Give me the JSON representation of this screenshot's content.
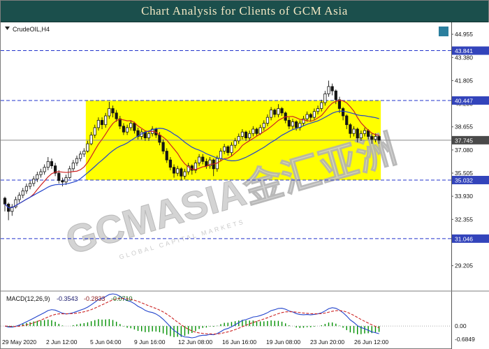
{
  "header": {
    "title": "Chart Analysis for Clients of GCM Asia"
  },
  "chart": {
    "symbol_label": "CrudeOIL,H4",
    "watermark": {
      "text": "GCMASIA金汇亚洲",
      "sub": "GLOBAL CAPITAL MARKETS"
    },
    "axis": {
      "badges": [
        {
          "text": "43.841",
          "price": 43.841,
          "kind": "level"
        },
        {
          "text": "40.447",
          "price": 40.447,
          "kind": "level"
        },
        {
          "text": "37.745",
          "price": 37.745,
          "kind": "current"
        },
        {
          "text": "35.032",
          "price": 35.032,
          "kind": "level"
        },
        {
          "text": "31.046",
          "price": 31.046,
          "kind": "level"
        }
      ]
    },
    "colors": {
      "level_line": "#2233cc",
      "badge_level": "#3344bb",
      "badge_current": "#4a4a4a",
      "current_line": "#8a8a8a",
      "highlight": "#ffff00",
      "header_bg": "#1b4f4c",
      "header_fg": "#f2e7c3"
    }
  },
  "chart_data": {
    "type": "candlestick",
    "symbol": "CrudeOIL",
    "timeframe": "H4",
    "title": "Chart Analysis for Clients of GCM Asia",
    "x_labels": [
      "29 May 2020",
      "2 Jun 12:00",
      "5 Jun 04:00",
      "9 Jun 16:00",
      "12 Jun 08:00",
      "16 Jun 16:00",
      "19 Jun 08:00",
      "23 Jun 20:00",
      "26 Jun 12:00"
    ],
    "y_ticks": [
      "44.955",
      "43.380",
      "41.805",
      "40.230",
      "38.655",
      "37.080",
      "35.505",
      "33.930",
      "32.355",
      "29.205"
    ],
    "y_range": [
      27.5,
      45.8
    ],
    "levels": {
      "resistance": [
        43.841,
        40.447
      ],
      "support": [
        35.032,
        31.046
      ],
      "current": 37.745
    },
    "highlight_zone": {
      "start_bar": 23,
      "end_bar": 105,
      "top_price": 40.447,
      "bottom_price": 35.032
    },
    "overlays": [
      {
        "name": "ma-fast",
        "period": 8,
        "color": "#cc2222"
      },
      {
        "name": "ma-slow",
        "period": 21,
        "color": "#2244cc"
      }
    ],
    "indicator": {
      "name": "MACD",
      "label": "MACD(12,26,9)",
      "values": [
        "-0.3543",
        "-0.2833",
        "-0.0710"
      ],
      "scale": [
        "0.00",
        "-0.6849"
      ],
      "colors": {
        "macd": "#2244cc",
        "signal": "#cc2222",
        "hist": "#009000"
      }
    },
    "candles_ohlc": [
      [
        33.8,
        33.9,
        32.9,
        33.4
      ],
      [
        33.4,
        33.5,
        32.3,
        32.9
      ],
      [
        32.9,
        33.4,
        32.6,
        33.2
      ],
      [
        33.2,
        33.9,
        33.1,
        33.7
      ],
      [
        33.7,
        34.2,
        33.5,
        34.0
      ],
      [
        34.0,
        34.5,
        33.8,
        34.3
      ],
      [
        34.3,
        34.8,
        34.1,
        34.6
      ],
      [
        34.6,
        35.0,
        34.4,
        34.8
      ],
      [
        34.8,
        35.3,
        34.6,
        35.1
      ],
      [
        35.1,
        35.6,
        34.9,
        35.4
      ],
      [
        35.4,
        35.8,
        35.2,
        35.6
      ],
      [
        35.6,
        36.1,
        35.4,
        35.9
      ],
      [
        35.9,
        36.6,
        35.7,
        36.3
      ],
      [
        36.3,
        36.5,
        35.8,
        36.0
      ],
      [
        36.0,
        36.2,
        35.3,
        35.5
      ],
      [
        35.5,
        35.7,
        34.8,
        35.0
      ],
      [
        35.0,
        35.2,
        34.6,
        34.9
      ],
      [
        34.9,
        35.4,
        34.7,
        35.2
      ],
      [
        35.2,
        36.0,
        35.1,
        35.8
      ],
      [
        35.8,
        36.4,
        35.6,
        36.2
      ],
      [
        36.2,
        36.7,
        36.0,
        36.5
      ],
      [
        36.5,
        37.0,
        36.3,
        36.8
      ],
      [
        36.8,
        37.2,
        36.6,
        37.0
      ],
      [
        37.0,
        37.7,
        36.9,
        37.5
      ],
      [
        37.5,
        38.3,
        37.4,
        38.1
      ],
      [
        38.1,
        38.8,
        37.9,
        38.6
      ],
      [
        38.6,
        39.3,
        38.4,
        39.1
      ],
      [
        39.1,
        39.3,
        38.5,
        38.8
      ],
      [
        38.8,
        39.6,
        38.6,
        39.4
      ],
      [
        39.4,
        40.35,
        39.2,
        39.9
      ],
      [
        39.9,
        40.1,
        39.3,
        39.6
      ],
      [
        39.6,
        39.8,
        39.0,
        39.2
      ],
      [
        39.2,
        39.4,
        38.5,
        38.7
      ],
      [
        38.7,
        38.9,
        38.1,
        38.3
      ],
      [
        38.3,
        38.8,
        38.1,
        38.6
      ],
      [
        38.6,
        39.1,
        38.4,
        38.9
      ],
      [
        38.9,
        39.0,
        38.2,
        38.4
      ],
      [
        38.4,
        38.6,
        37.8,
        38.0
      ],
      [
        38.0,
        38.5,
        37.8,
        38.3
      ],
      [
        38.3,
        38.4,
        37.7,
        37.9
      ],
      [
        37.9,
        38.4,
        37.7,
        38.2
      ],
      [
        38.2,
        38.7,
        38.0,
        38.5
      ],
      [
        38.5,
        38.6,
        37.9,
        38.1
      ],
      [
        38.1,
        38.3,
        37.4,
        37.6
      ],
      [
        37.6,
        37.8,
        36.8,
        37.0
      ],
      [
        37.0,
        37.2,
        36.2,
        36.4
      ],
      [
        36.4,
        36.6,
        35.7,
        35.9
      ],
      [
        35.9,
        36.1,
        35.2,
        35.5
      ],
      [
        35.5,
        36.0,
        35.3,
        35.8
      ],
      [
        35.8,
        35.9,
        35.0,
        35.3
      ],
      [
        35.3,
        35.8,
        35.1,
        35.6
      ],
      [
        35.6,
        36.2,
        35.4,
        36.0
      ],
      [
        36.0,
        36.1,
        35.4,
        35.7
      ],
      [
        35.7,
        36.4,
        35.5,
        36.2
      ],
      [
        36.2,
        36.8,
        36.0,
        36.6
      ],
      [
        36.6,
        36.8,
        36.1,
        36.3
      ],
      [
        36.3,
        36.5,
        35.8,
        36.0
      ],
      [
        36.0,
        36.6,
        35.8,
        36.4
      ],
      [
        36.4,
        36.5,
        35.3,
        35.8
      ],
      [
        35.8,
        36.7,
        35.6,
        36.5
      ],
      [
        36.5,
        37.2,
        36.3,
        37.0
      ],
      [
        37.0,
        37.5,
        36.8,
        37.3
      ],
      [
        37.3,
        37.4,
        36.7,
        36.9
      ],
      [
        36.9,
        37.6,
        36.7,
        37.4
      ],
      [
        37.4,
        37.9,
        37.2,
        37.7
      ],
      [
        37.7,
        38.2,
        37.5,
        38.0
      ],
      [
        38.0,
        38.5,
        37.8,
        38.3
      ],
      [
        38.3,
        38.4,
        37.7,
        37.9
      ],
      [
        37.9,
        38.4,
        37.7,
        38.2
      ],
      [
        38.2,
        38.7,
        38.0,
        38.5
      ],
      [
        38.5,
        38.6,
        38.0,
        38.2
      ],
      [
        38.2,
        38.8,
        38.1,
        38.6
      ],
      [
        38.6,
        39.1,
        38.4,
        38.9
      ],
      [
        38.9,
        39.5,
        38.7,
        39.3
      ],
      [
        39.3,
        40.0,
        39.1,
        39.8
      ],
      [
        39.8,
        39.9,
        39.3,
        39.5
      ],
      [
        39.5,
        40.2,
        39.3,
        39.9
      ],
      [
        39.9,
        40.0,
        39.4,
        39.6
      ],
      [
        39.6,
        39.7,
        38.9,
        39.1
      ],
      [
        39.1,
        39.3,
        38.5,
        38.7
      ],
      [
        38.7,
        39.2,
        38.5,
        39.0
      ],
      [
        39.0,
        39.1,
        38.4,
        38.6
      ],
      [
        38.6,
        39.1,
        38.4,
        38.9
      ],
      [
        38.9,
        39.4,
        38.7,
        39.2
      ],
      [
        39.2,
        39.7,
        39.0,
        39.5
      ],
      [
        39.5,
        39.6,
        39.0,
        39.3
      ],
      [
        39.3,
        39.9,
        39.1,
        39.7
      ],
      [
        39.7,
        40.1,
        39.5,
        39.9
      ],
      [
        39.9,
        40.5,
        39.7,
        40.3
      ],
      [
        40.3,
        41.1,
        40.1,
        40.9
      ],
      [
        40.9,
        41.8,
        40.7,
        41.4
      ],
      [
        41.4,
        41.6,
        40.8,
        41.1
      ],
      [
        41.1,
        41.2,
        40.2,
        40.5
      ],
      [
        40.5,
        40.7,
        39.6,
        39.9
      ],
      [
        39.9,
        40.0,
        39.1,
        39.4
      ],
      [
        39.4,
        39.5,
        38.5,
        38.8
      ],
      [
        38.8,
        38.9,
        37.9,
        38.2
      ],
      [
        38.2,
        38.7,
        38.0,
        38.5
      ],
      [
        38.5,
        38.6,
        37.6,
        37.9
      ],
      [
        37.9,
        38.4,
        37.7,
        38.2
      ],
      [
        38.2,
        38.6,
        38.0,
        38.4
      ],
      [
        38.4,
        38.5,
        37.8,
        38.0
      ],
      [
        38.0,
        38.2,
        37.5,
        37.8
      ],
      [
        37.8,
        38.2,
        37.6,
        38.0
      ],
      [
        38.0,
        38.1,
        37.5,
        37.745
      ]
    ]
  }
}
